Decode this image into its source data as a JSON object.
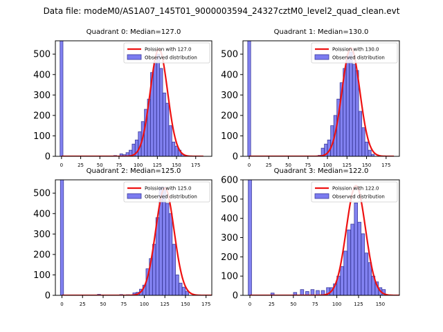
{
  "figure": {
    "title": "Data file: modeM0/AS1A07_145T01_9000003594_24327cztM0_level2_quad_clean.evt"
  },
  "colors": {
    "bar_fill": "#7b7bf0",
    "bar_edge": "#3b3b9b",
    "curve": "#ee1111",
    "axis": "#000000"
  },
  "chart_data": [
    {
      "type": "bar",
      "title": "Quadrant 0: Median=127.0",
      "xlim": [
        -8,
        196
      ],
      "ylim": [
        0,
        565
      ],
      "xticks": [
        0,
        25,
        50,
        75,
        100,
        125,
        150,
        175
      ],
      "yticks": [
        0,
        100,
        200,
        300,
        400,
        500
      ],
      "legend": {
        "position": "top-right",
        "entries": [
          "Poission with 127.0",
          "Observed distribution"
        ]
      },
      "bar_width": 3.8,
      "bins": [
        [
          0,
          565
        ],
        [
          70,
          4
        ],
        [
          78,
          12
        ],
        [
          82,
          8
        ],
        [
          86,
          18
        ],
        [
          90,
          30
        ],
        [
          94,
          60
        ],
        [
          98,
          80
        ],
        [
          102,
          120
        ],
        [
          106,
          170
        ],
        [
          110,
          230
        ],
        [
          114,
          280
        ],
        [
          118,
          410
        ],
        [
          122,
          460
        ],
        [
          126,
          500
        ],
        [
          130,
          430
        ],
        [
          134,
          310
        ],
        [
          138,
          260
        ],
        [
          142,
          150
        ],
        [
          146,
          70
        ],
        [
          150,
          50
        ],
        [
          154,
          30
        ],
        [
          158,
          10
        ]
      ],
      "poisson": {
        "mean": 127.0,
        "peak": 525
      }
    },
    {
      "type": "bar",
      "title": "Quadrant 1: Median=130.0",
      "xlim": [
        -8,
        192
      ],
      "ylim": [
        0,
        565
      ],
      "xticks": [
        0,
        25,
        50,
        75,
        100,
        125,
        150,
        175
      ],
      "yticks": [
        0,
        100,
        200,
        300,
        400,
        500
      ],
      "legend": {
        "position": "top-right",
        "entries": [
          "Poission with 130.0",
          "Observed distribution"
        ]
      },
      "bar_width": 3.8,
      "bins": [
        [
          0,
          565
        ],
        [
          90,
          5
        ],
        [
          94,
          40
        ],
        [
          98,
          60
        ],
        [
          102,
          80
        ],
        [
          106,
          150
        ],
        [
          110,
          200
        ],
        [
          114,
          280
        ],
        [
          118,
          360
        ],
        [
          122,
          430
        ],
        [
          126,
          490
        ],
        [
          130,
          510
        ],
        [
          134,
          450
        ],
        [
          138,
          420
        ],
        [
          142,
          220
        ],
        [
          146,
          140
        ],
        [
          150,
          70
        ],
        [
          154,
          30
        ],
        [
          158,
          10
        ]
      ],
      "poisson": {
        "mean": 130.0,
        "peak": 530
      }
    },
    {
      "type": "bar",
      "title": "Quadrant 2: Median=125.0",
      "xlim": [
        -8,
        182
      ],
      "ylim": [
        0,
        565
      ],
      "xticks": [
        0,
        25,
        50,
        75,
        100,
        125,
        150,
        175
      ],
      "yticks": [
        0,
        100,
        200,
        300,
        400,
        500
      ],
      "legend": {
        "position": "top-right",
        "entries": [
          "Poission with 125.0",
          "Observed distribution"
        ]
      },
      "bar_width": 3.8,
      "bins": [
        [
          0,
          565
        ],
        [
          45,
          5
        ],
        [
          72,
          4
        ],
        [
          80,
          3
        ],
        [
          88,
          12
        ],
        [
          92,
          15
        ],
        [
          96,
          30
        ],
        [
          100,
          50
        ],
        [
          104,
          130
        ],
        [
          108,
          180
        ],
        [
          112,
          250
        ],
        [
          116,
          380
        ],
        [
          120,
          530
        ],
        [
          124,
          530
        ],
        [
          128,
          450
        ],
        [
          132,
          400
        ],
        [
          136,
          250
        ],
        [
          140,
          100
        ],
        [
          144,
          60
        ],
        [
          148,
          40
        ],
        [
          152,
          20
        ]
      ],
      "poisson": {
        "mean": 125.0,
        "peak": 525
      }
    },
    {
      "type": "bar",
      "title": "Quadrant 3: Median=122.0",
      "xlim": [
        -8,
        172
      ],
      "ylim": [
        0,
        600
      ],
      "xticks": [
        0,
        25,
        50,
        75,
        100,
        125,
        150
      ],
      "yticks": [
        0,
        100,
        200,
        300,
        400,
        500,
        600
      ],
      "legend": {
        "position": "top-right",
        "entries": [
          "Poission with 122.0",
          "Observed distribution"
        ]
      },
      "bar_width": 3.8,
      "bins": [
        [
          0,
          600
        ],
        [
          26,
          12
        ],
        [
          52,
          15
        ],
        [
          60,
          30
        ],
        [
          66,
          20
        ],
        [
          72,
          30
        ],
        [
          78,
          25
        ],
        [
          84,
          25
        ],
        [
          90,
          40
        ],
        [
          94,
          40
        ],
        [
          98,
          60
        ],
        [
          102,
          100
        ],
        [
          106,
          150
        ],
        [
          110,
          230
        ],
        [
          114,
          340
        ],
        [
          118,
          370
        ],
        [
          122,
          480
        ],
        [
          126,
          380
        ],
        [
          130,
          320
        ],
        [
          134,
          220
        ],
        [
          138,
          170
        ],
        [
          142,
          100
        ],
        [
          146,
          70
        ],
        [
          150,
          40
        ],
        [
          154,
          30
        ]
      ],
      "poisson": {
        "mean": 122.0,
        "peak": 570
      }
    }
  ]
}
